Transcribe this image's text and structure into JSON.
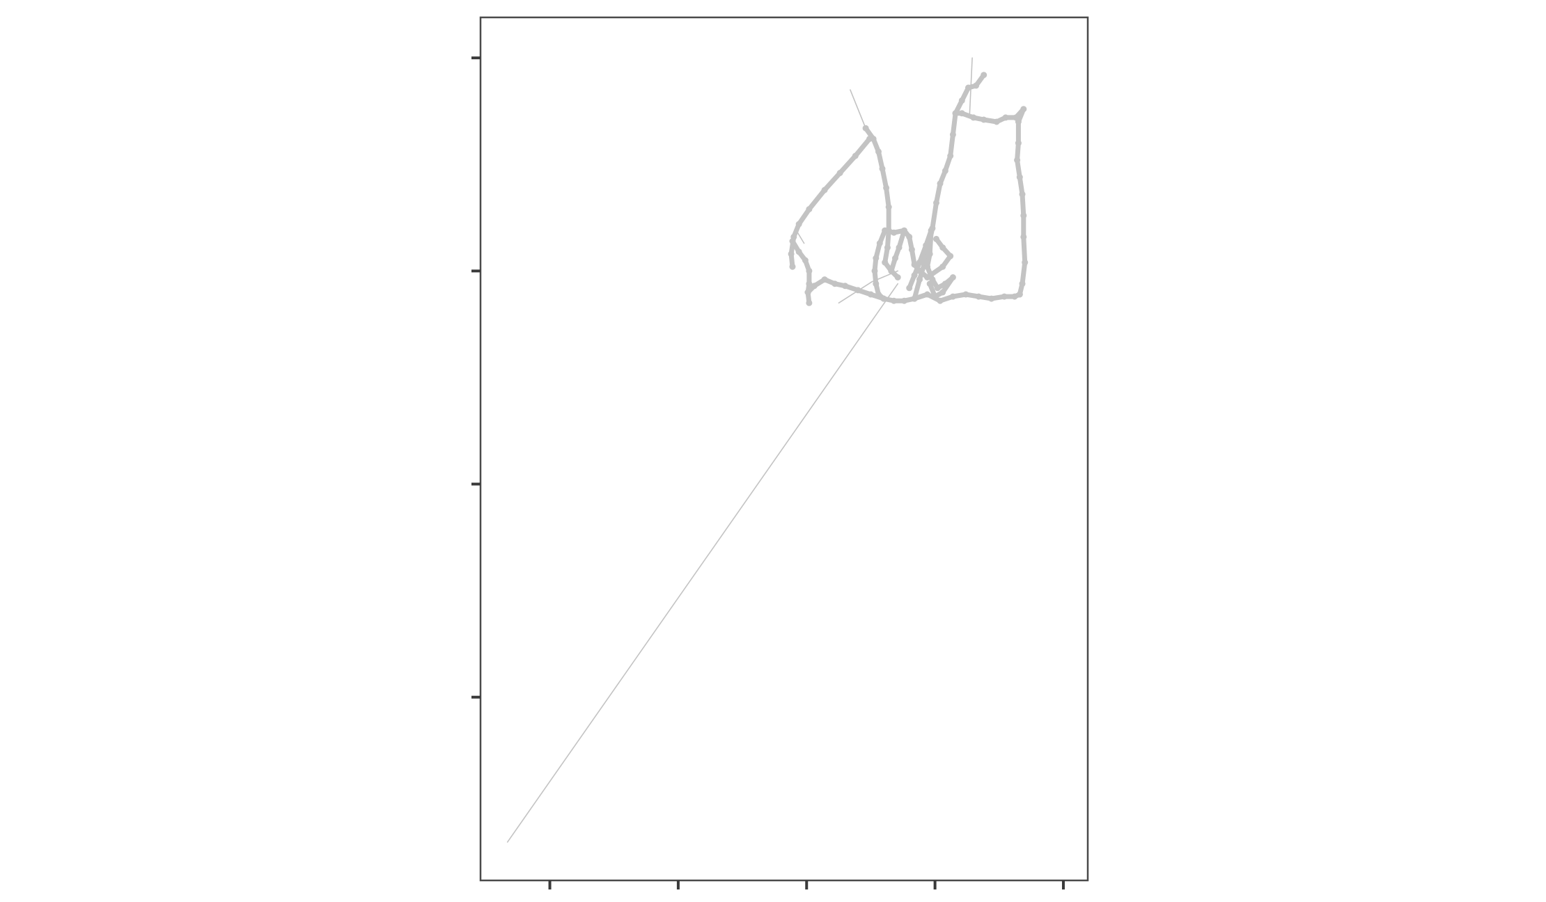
{
  "chart_data": {
    "type": "line",
    "title": "",
    "xlabel": "",
    "ylabel": "",
    "tick_labels_shown": false,
    "xlim": [
      0,
      4.73
    ],
    "ylim": [
      0,
      4.05
    ],
    "x_ticks": [
      0.54,
      1.54,
      2.54,
      3.54,
      4.54
    ],
    "y_ticks": [
      0.86,
      1.86,
      2.86,
      3.86
    ],
    "grid": false,
    "legend": "none",
    "colors": {
      "track": "#c3c3c3",
      "frame": "#4a4a4a",
      "tick": "#3a3a3a"
    },
    "series": [
      {
        "weight": "thin",
        "points": [
          [
            0.21,
            0.18
          ],
          [
            3.25,
            2.8
          ]
        ]
      },
      {
        "weight": "thin",
        "points": [
          [
            2.88,
            3.71
          ],
          [
            3.0,
            3.53
          ]
        ]
      },
      {
        "weight": "thin",
        "points": [
          [
            3.83,
            3.86
          ],
          [
            3.81,
            3.6
          ]
        ]
      },
      {
        "weight": "thin",
        "points": [
          [
            2.79,
            2.71
          ],
          [
            3.05,
            2.81
          ],
          [
            3.25,
            2.86
          ]
        ]
      },
      {
        "weight": "thin",
        "points": [
          [
            2.46,
            3.05
          ],
          [
            2.52,
            2.99
          ]
        ]
      },
      {
        "weight": "thick",
        "points": [
          [
            3.0,
            3.53
          ],
          [
            3.06,
            3.48
          ],
          [
            3.1,
            3.42
          ],
          [
            3.13,
            3.34
          ],
          [
            3.16,
            3.25
          ],
          [
            3.18,
            3.16
          ],
          [
            3.18,
            3.05
          ],
          [
            3.17,
            2.97
          ],
          [
            3.15,
            2.9
          ],
          [
            3.2,
            2.86
          ],
          [
            3.25,
            2.83
          ]
        ]
      },
      {
        "weight": "thick",
        "points": [
          [
            3.03,
            3.48
          ],
          [
            2.92,
            3.4
          ],
          [
            2.8,
            3.32
          ],
          [
            2.68,
            3.24
          ],
          [
            2.56,
            3.15
          ],
          [
            2.48,
            3.08
          ],
          [
            2.44,
            3.02
          ],
          [
            2.42,
            2.94
          ],
          [
            2.43,
            2.88
          ]
        ]
      },
      {
        "weight": "thick",
        "points": [
          [
            2.43,
            3.0
          ],
          [
            2.48,
            2.95
          ],
          [
            2.53,
            2.91
          ],
          [
            2.56,
            2.86
          ],
          [
            2.56,
            2.8
          ],
          [
            2.55,
            2.76
          ]
        ]
      },
      {
        "weight": "thick",
        "points": [
          [
            2.55,
            2.76
          ],
          [
            2.56,
            2.71
          ]
        ]
      },
      {
        "weight": "thick",
        "points": [
          [
            2.55,
            2.76
          ],
          [
            2.6,
            2.79
          ],
          [
            2.68,
            2.82
          ],
          [
            2.76,
            2.8
          ],
          [
            2.84,
            2.79
          ],
          [
            2.94,
            2.77
          ],
          [
            3.04,
            2.75
          ],
          [
            3.14,
            2.73
          ],
          [
            3.22,
            2.72
          ],
          [
            3.3,
            2.72
          ],
          [
            3.38,
            2.73
          ]
        ]
      },
      {
        "weight": "thick",
        "points": [
          [
            3.38,
            2.73
          ],
          [
            3.48,
            2.75
          ],
          [
            3.58,
            2.72
          ],
          [
            3.68,
            2.74
          ],
          [
            3.78,
            2.75
          ],
          [
            3.88,
            2.74
          ],
          [
            3.98,
            2.73
          ],
          [
            4.08,
            2.74
          ],
          [
            4.16,
            2.74
          ],
          [
            4.2,
            2.75
          ]
        ]
      },
      {
        "weight": "thick",
        "points": [
          [
            4.2,
            2.75
          ],
          [
            4.22,
            2.8
          ],
          [
            4.24,
            2.9
          ],
          [
            4.23,
            3.02
          ],
          [
            4.23,
            3.12
          ],
          [
            4.22,
            3.22
          ],
          [
            4.2,
            3.3
          ],
          [
            4.18,
            3.38
          ],
          [
            4.19,
            3.46
          ],
          [
            4.19,
            3.56
          ],
          [
            4.23,
            3.62
          ],
          [
            4.17,
            3.58
          ],
          [
            4.09,
            3.58
          ],
          [
            4.02,
            3.56
          ],
          [
            3.92,
            3.57
          ],
          [
            3.84,
            3.58
          ],
          [
            3.75,
            3.6
          ],
          [
            3.7,
            3.6
          ]
        ]
      },
      {
        "weight": "thick",
        "points": [
          [
            3.7,
            3.6
          ],
          [
            3.68,
            3.5
          ],
          [
            3.66,
            3.4
          ],
          [
            3.62,
            3.33
          ],
          [
            3.58,
            3.27
          ],
          [
            3.55,
            3.18
          ],
          [
            3.52,
            3.06
          ],
          [
            3.49,
            2.98
          ],
          [
            3.46,
            2.9
          ],
          [
            3.42,
            2.82
          ],
          [
            3.38,
            2.73
          ]
        ]
      },
      {
        "weight": "thick",
        "points": [
          [
            3.7,
            3.6
          ],
          [
            3.75,
            3.66
          ],
          [
            3.8,
            3.72
          ],
          [
            3.86,
            3.73
          ],
          [
            3.92,
            3.78
          ]
        ]
      },
      {
        "weight": "thick",
        "points": [
          [
            3.34,
            2.78
          ],
          [
            3.38,
            2.84
          ],
          [
            3.42,
            2.9
          ],
          [
            3.47,
            2.98
          ],
          [
            3.51,
            3.05
          ],
          [
            3.5,
            2.94
          ],
          [
            3.48,
            2.88
          ],
          [
            3.52,
            2.82
          ],
          [
            3.56,
            2.78
          ],
          [
            3.62,
            2.8
          ],
          [
            3.68,
            2.83
          ],
          [
            3.6,
            2.76
          ],
          [
            3.54,
            2.74
          ],
          [
            3.5,
            2.8
          ]
        ]
      },
      {
        "weight": "thick",
        "points": [
          [
            3.15,
            3.05
          ],
          [
            3.22,
            3.04
          ],
          [
            3.3,
            3.05
          ],
          [
            3.34,
            3.02
          ],
          [
            3.36,
            2.96
          ],
          [
            3.38,
            2.89
          ],
          [
            3.42,
            2.86
          ],
          [
            3.48,
            2.83
          ],
          [
            3.6,
            2.88
          ],
          [
            3.66,
            2.93
          ],
          [
            3.6,
            2.97
          ],
          [
            3.55,
            3.01
          ]
        ]
      },
      {
        "weight": "thick",
        "points": [
          [
            3.15,
            3.05
          ],
          [
            3.11,
            2.99
          ],
          [
            3.08,
            2.92
          ],
          [
            3.07,
            2.86
          ],
          [
            3.08,
            2.8
          ],
          [
            3.1,
            2.75
          ],
          [
            3.14,
            2.73
          ]
        ]
      },
      {
        "weight": "thick",
        "points": [
          [
            3.3,
            3.05
          ],
          [
            3.26,
            2.97
          ],
          [
            3.23,
            2.92
          ],
          [
            3.2,
            2.86
          ]
        ]
      }
    ]
  }
}
